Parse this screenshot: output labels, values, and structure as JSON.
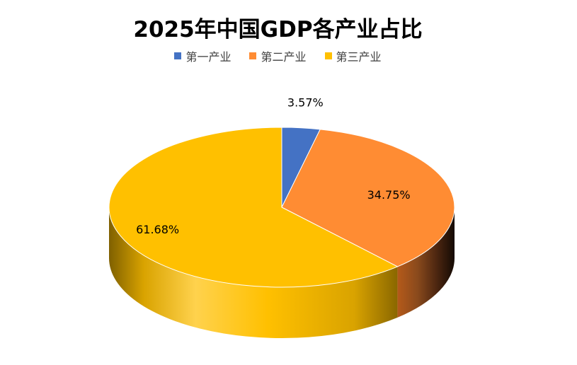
{
  "chart_data": {
    "type": "pie",
    "title": "2025年中国GDP各产业占比",
    "categories": [
      "第一产业",
      "第二产业",
      "第三产业"
    ],
    "values": [
      3.57,
      34.75,
      61.68
    ],
    "data_labels": [
      "3.57%",
      "34.75%",
      "61.68%"
    ],
    "colors": [
      "#4472C4",
      "#FF8C33",
      "#FFC000"
    ],
    "style": "3d",
    "legend_position": "top"
  }
}
